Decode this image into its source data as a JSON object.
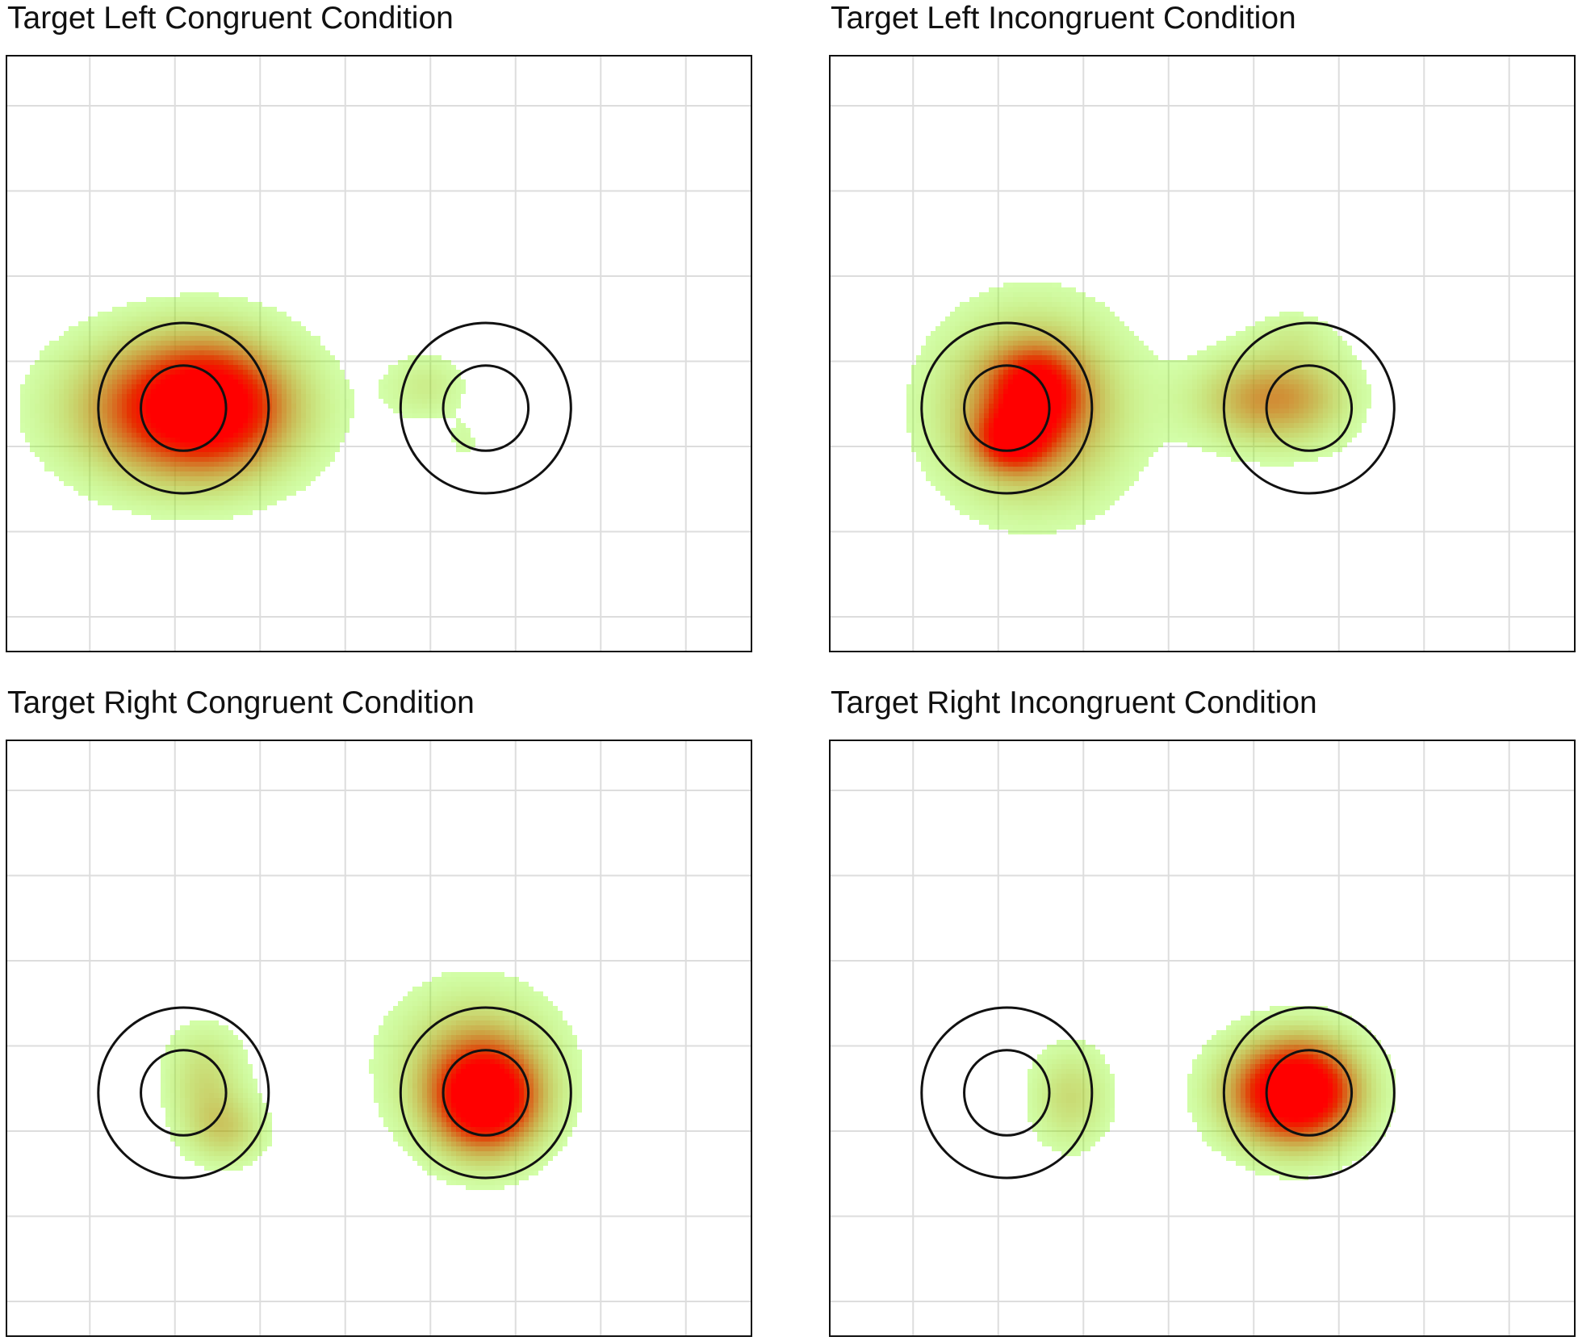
{
  "chart_data": [
    {
      "type": "heatmap",
      "title": "Target Left Congruent Condition",
      "grid": true,
      "colors": {
        "low": "#7cfc00",
        "high": "#ff0000",
        "grid": "#dddddd",
        "frame": "#111111"
      },
      "targets": [
        {
          "x": 2.6,
          "y": 3.55,
          "r_outer": 1.0,
          "r_inner": 0.5
        },
        {
          "x": 6.15,
          "y": 3.55,
          "r_outer": 1.0,
          "r_inner": 0.5
        }
      ],
      "heat": [
        {
          "x": 2.6,
          "y": 3.55,
          "sx": 0.9,
          "sy": 0.6,
          "w": 1.0
        },
        {
          "x": 3.05,
          "y": 3.5,
          "sx": 0.55,
          "sy": 0.55,
          "w": 0.35
        },
        {
          "x": 5.45,
          "y": 3.3,
          "sx": 0.35,
          "sy": 0.3,
          "w": 0.22
        },
        {
          "x": 5.9,
          "y": 3.95,
          "sx": 0.15,
          "sy": 0.2,
          "w": 0.12
        }
      ]
    },
    {
      "type": "heatmap",
      "title": "Target Left Incongruent Condition",
      "grid": true,
      "colors": {
        "low": "#7cfc00",
        "high": "#ff0000",
        "grid": "#dddddd",
        "frame": "#111111"
      },
      "targets": [
        {
          "x": 2.6,
          "y": 3.55,
          "r_outer": 1.0,
          "r_inner": 0.5
        },
        {
          "x": 6.15,
          "y": 3.55,
          "r_outer": 1.0,
          "r_inner": 0.5
        }
      ],
      "heat": [
        {
          "x": 2.65,
          "y": 3.95,
          "sx": 0.3,
          "sy": 0.25,
          "w": 0.55
        },
        {
          "x": 2.95,
          "y": 3.35,
          "sx": 0.35,
          "sy": 0.35,
          "w": 0.55
        },
        {
          "x": 2.9,
          "y": 3.55,
          "sx": 0.75,
          "sy": 0.75,
          "w": 0.7
        },
        {
          "x": 5.55,
          "y": 3.45,
          "sx": 0.55,
          "sy": 0.4,
          "w": 0.5
        },
        {
          "x": 6.2,
          "y": 3.4,
          "sx": 0.45,
          "sy": 0.45,
          "w": 0.22
        },
        {
          "x": 5.95,
          "y": 2.65,
          "sx": 0.35,
          "sy": 0.2,
          "w": 0.12
        }
      ]
    },
    {
      "type": "heatmap",
      "title": "Target Right Congruent Condition",
      "grid": true,
      "colors": {
        "low": "#7cfc00",
        "high": "#ff0000",
        "grid": "#dddddd",
        "frame": "#111111"
      },
      "targets": [
        {
          "x": 2.6,
          "y": 3.55,
          "r_outer": 1.0,
          "r_inner": 0.5
        },
        {
          "x": 6.15,
          "y": 3.55,
          "r_outer": 1.0,
          "r_inner": 0.5
        }
      ],
      "heat": [
        {
          "x": 3.1,
          "y": 4.0,
          "sx": 0.35,
          "sy": 0.3,
          "w": 0.32
        },
        {
          "x": 2.85,
          "y": 3.35,
          "sx": 0.35,
          "sy": 0.45,
          "w": 0.3
        },
        {
          "x": 6.15,
          "y": 3.65,
          "sx": 0.45,
          "sy": 0.45,
          "w": 1.0
        },
        {
          "x": 6.0,
          "y": 3.2,
          "sx": 0.7,
          "sy": 0.65,
          "w": 0.4
        }
      ]
    },
    {
      "type": "heatmap",
      "title": "Target Right Incongruent Condition",
      "grid": true,
      "colors": {
        "low": "#7cfc00",
        "high": "#ff0000",
        "grid": "#dddddd",
        "frame": "#111111"
      },
      "targets": [
        {
          "x": 2.6,
          "y": 3.55,
          "r_outer": 1.0,
          "r_inner": 0.5
        },
        {
          "x": 6.15,
          "y": 3.55,
          "r_outer": 1.0,
          "r_inner": 0.5
        }
      ],
      "heat": [
        {
          "x": 3.35,
          "y": 3.6,
          "sx": 0.35,
          "sy": 0.45,
          "w": 0.32
        },
        {
          "x": 5.9,
          "y": 3.55,
          "sx": 0.55,
          "sy": 0.45,
          "w": 1.0
        },
        {
          "x": 6.2,
          "y": 3.5,
          "sx": 0.45,
          "sy": 0.45,
          "w": 0.35
        }
      ]
    }
  ]
}
